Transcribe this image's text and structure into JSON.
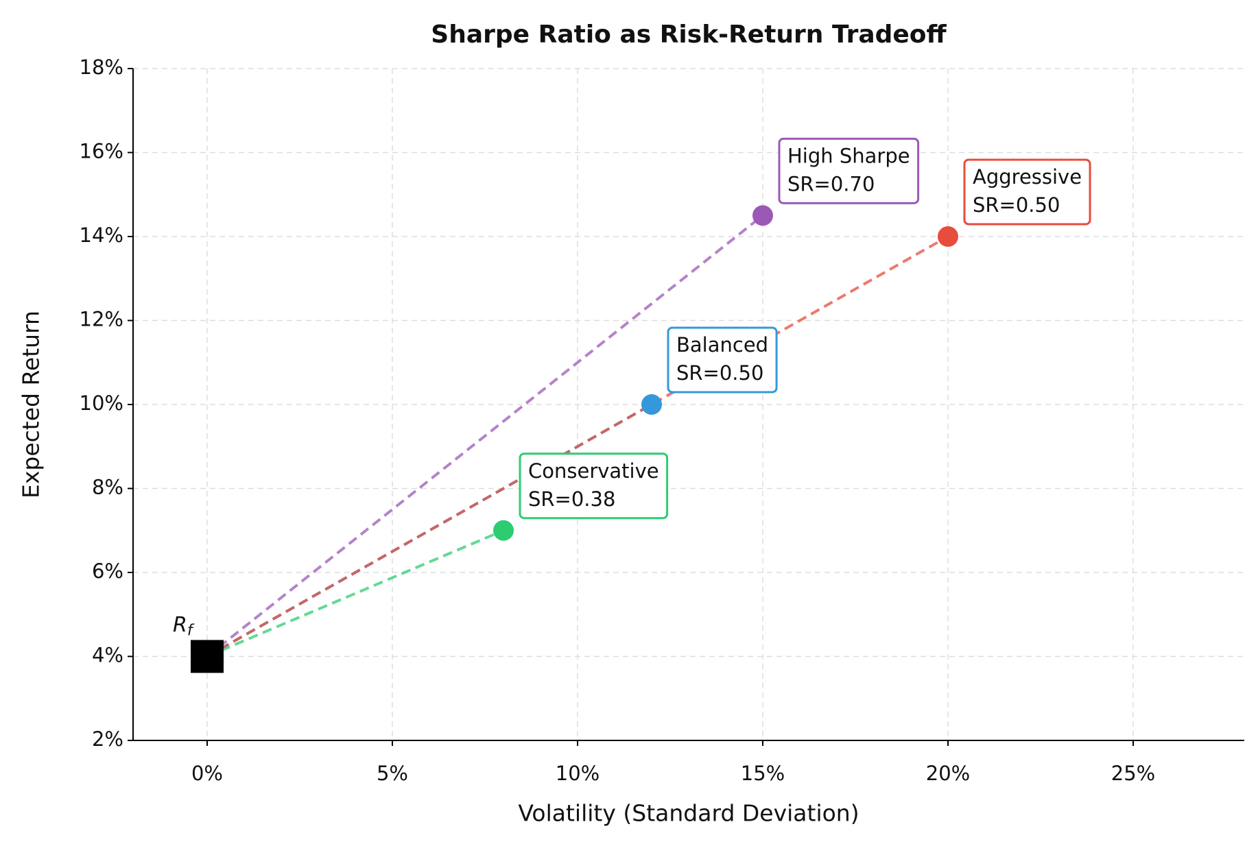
{
  "chart_data": {
    "type": "scatter",
    "title": "Sharpe Ratio as Risk-Return Tradeoff",
    "x_label": "Volatility (Standard Deviation)",
    "y_label": "Expected Return",
    "xlim": [
      -2,
      28
    ],
    "ylim": [
      2,
      18
    ],
    "xticks": [
      {
        "value": 0,
        "label": "0%"
      },
      {
        "value": 5,
        "label": "5%"
      },
      {
        "value": 10,
        "label": "10%"
      },
      {
        "value": 15,
        "label": "15%"
      },
      {
        "value": 20,
        "label": "20%"
      },
      {
        "value": 25,
        "label": "25%"
      }
    ],
    "yticks": [
      {
        "value": 2,
        "label": "2%"
      },
      {
        "value": 4,
        "label": "4%"
      },
      {
        "value": 6,
        "label": "6%"
      },
      {
        "value": 8,
        "label": "8%"
      },
      {
        "value": 10,
        "label": "10%"
      },
      {
        "value": 12,
        "label": "12%"
      },
      {
        "value": 14,
        "label": "14%"
      },
      {
        "value": 16,
        "label": "16%"
      },
      {
        "value": 18,
        "label": "18%"
      }
    ],
    "grid": true,
    "risk_free": {
      "x": 0,
      "y": 4,
      "label": "R",
      "label_sub": "f",
      "color": "#000000"
    },
    "series": [
      {
        "name": "Conservative",
        "color": "#2ecc71",
        "x": [
          8
        ],
        "values": [
          7
        ],
        "value_labels": [
          "SR=0.38"
        ]
      },
      {
        "name": "Balanced",
        "color": "#3498db",
        "x": [
          12
        ],
        "values": [
          10
        ],
        "value_labels": [
          "SR=0.50"
        ]
      },
      {
        "name": "Aggressive",
        "color": "#e74c3c",
        "x": [
          20
        ],
        "values": [
          14
        ],
        "value_labels": [
          "SR=0.50"
        ]
      },
      {
        "name": "High Sharpe",
        "color": "#9b59b6",
        "x": [
          15
        ],
        "values": [
          14.5
        ],
        "value_labels": [
          "SR=0.70"
        ]
      }
    ]
  }
}
